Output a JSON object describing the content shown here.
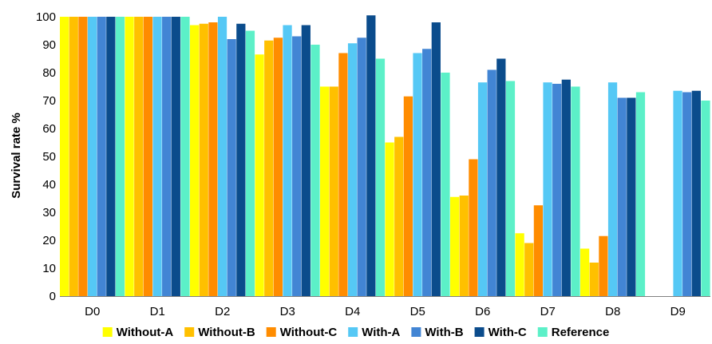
{
  "chart_data": {
    "type": "bar",
    "xlabel": "",
    "ylabel": "Survival rate %",
    "ylim": [
      0,
      100
    ],
    "yticks": [
      0,
      10,
      20,
      30,
      40,
      50,
      60,
      70,
      80,
      90,
      100
    ],
    "grid": false,
    "legend": "bottom",
    "categories": [
      "D0",
      "D1",
      "D2",
      "D3",
      "D4",
      "D5",
      "D6",
      "D7",
      "D8",
      "D9"
    ],
    "series": [
      {
        "name": "Without-A",
        "color": "#FFFF00",
        "values": [
          100,
          100,
          97,
          86.5,
          75,
          55,
          35.5,
          22.5,
          17,
          null
        ]
      },
      {
        "name": "Without-B",
        "color": "#FFC000",
        "values": [
          100,
          100,
          97.5,
          91.5,
          75,
          57,
          36,
          19,
          12,
          null
        ]
      },
      {
        "name": "Without-C",
        "color": "#FF8C00",
        "values": [
          100,
          100,
          98,
          92.5,
          87,
          71.5,
          49,
          32.5,
          21.5,
          null
        ]
      },
      {
        "name": "With-A",
        "color": "#55C8F5",
        "values": [
          100,
          100,
          100,
          97,
          90.5,
          87,
          76.5,
          76.5,
          76.5,
          73.5
        ]
      },
      {
        "name": "With-B",
        "color": "#4285D4",
        "values": [
          100,
          100,
          92,
          93,
          92.5,
          88.5,
          81,
          76,
          71,
          73
        ]
      },
      {
        "name": "With-C",
        "color": "#0B4C8C",
        "values": [
          100,
          100,
          97.5,
          97,
          100.5,
          98,
          85,
          77.5,
          71,
          73.5
        ]
      },
      {
        "name": "Reference",
        "color": "#5CF0C8",
        "values": [
          100,
          100,
          95,
          90,
          85,
          80,
          77,
          75,
          73,
          70
        ]
      }
    ]
  }
}
